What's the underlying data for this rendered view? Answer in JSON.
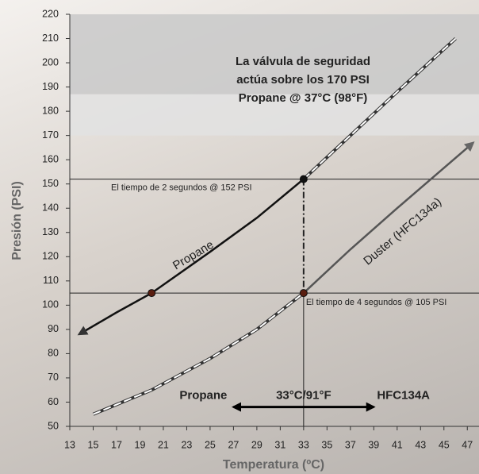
{
  "chart_data": {
    "type": "line",
    "x_label": "Temperatura (ºC)",
    "y_label": "Presión (PSI)",
    "xlim": [
      13,
      48
    ],
    "ylim": [
      50,
      220
    ],
    "xticks": [
      13,
      15,
      17,
      19,
      21,
      23,
      25,
      27,
      29,
      31,
      33,
      35,
      37,
      39,
      41,
      43,
      45,
      47
    ],
    "yticks": [
      50,
      60,
      70,
      80,
      90,
      100,
      110,
      120,
      130,
      140,
      150,
      160,
      170,
      180,
      190,
      200,
      210,
      220
    ],
    "bands": [
      {
        "from": 187,
        "to": 220,
        "color": "#c9c9c9"
      },
      {
        "from": 170,
        "to": 187,
        "color": "#e2e2e2"
      }
    ],
    "series": [
      {
        "name": "Propane",
        "color": "#111111",
        "segments": [
          {
            "style": "solid",
            "x": [
              13.8,
              17,
              20,
              25,
              29,
              33
            ],
            "values": [
              88,
              97,
              105,
              122,
              136,
              152
            ]
          },
          {
            "style": "dashed",
            "x": [
              33,
              37,
              41,
              46
            ],
            "values": [
              152,
              170,
              188,
              210
            ]
          }
        ]
      },
      {
        "name": "Duster (HFC134a)",
        "color": "#555555",
        "segments": [
          {
            "style": "dashed",
            "x": [
              15,
              20,
              25,
              29,
              33
            ],
            "values": [
              55,
              65,
              78,
              90,
              105
            ]
          },
          {
            "style": "solid",
            "x": [
              33,
              37,
              41,
              47.5
            ],
            "values": [
              105,
              123,
              140,
              167
            ]
          }
        ]
      }
    ],
    "ref_lines": {
      "h": [
        152,
        105
      ],
      "v": 33
    },
    "markers": [
      {
        "x": 33,
        "y": 152
      },
      {
        "x": 20,
        "y": 105
      },
      {
        "x": 33,
        "y": 105
      }
    ],
    "annotations": [
      "El tiempo de 2 segundos @ 152 PSI",
      "El tiempo de 4 segundos @ 105 PSI",
      "La válvula de seguridad",
      "actúa sobre los 170 PSI",
      "Propane @ 37°C (98°F)"
    ],
    "range_arrow": {
      "from": 27,
      "to": 39,
      "y": 58,
      "left_label": "Propane",
      "center_label": "33°C/91°F",
      "right_label": "HFC134A"
    }
  }
}
